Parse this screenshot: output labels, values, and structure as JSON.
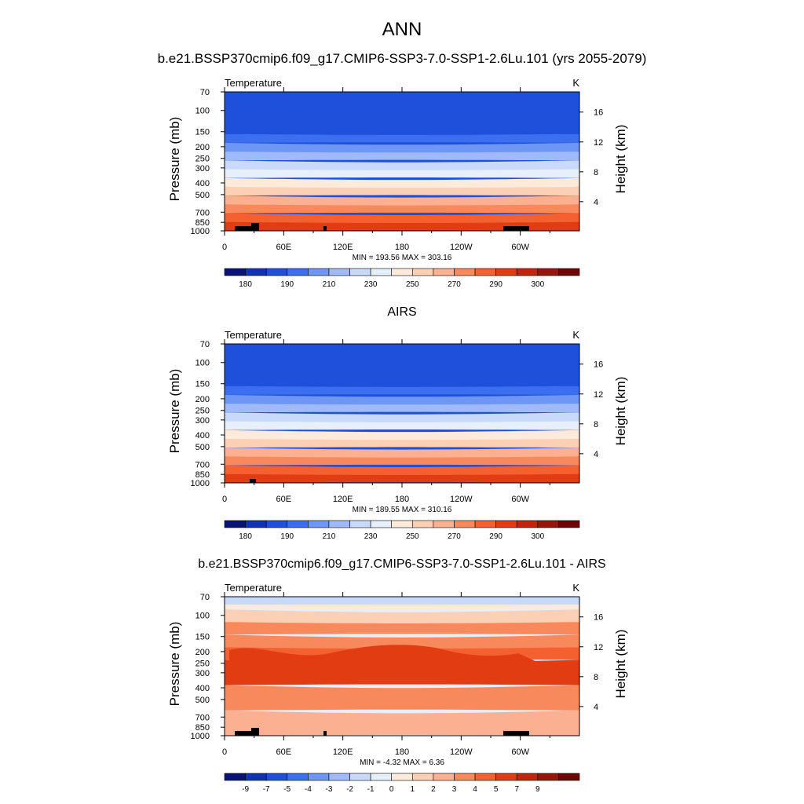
{
  "title": "ANN",
  "chart_data": [
    {
      "type": "contour",
      "panel_title": "b.e21.BSSP370cmip6.f09_g17.CMIP6-SSP3-7.0-SSP1-2.6Lu.101 (yrs 2055-2079)",
      "variable": "Temperature",
      "units": "K",
      "ylabel": "Pressure (mb)",
      "y2label": "Height (km)",
      "pressure_ticks": [
        "70",
        "100",
        "150",
        "200",
        "250",
        "300",
        "400",
        "500",
        "700",
        "850",
        "1000"
      ],
      "height_ticks": [
        "4",
        "8",
        "12",
        "16"
      ],
      "lon_ticks": [
        "0",
        "60E",
        "120E",
        "180",
        "120W",
        "60W"
      ],
      "stats": "MIN = 193.56  MAX = 303.16",
      "min": 193.56,
      "max": 303.16,
      "colorbar_labels": [
        "180",
        "190",
        "210",
        "230",
        "250",
        "270",
        "290",
        "300"
      ],
      "colors": [
        "#0a1478",
        "#1032b4",
        "#1e50dc",
        "#3c6ef0",
        "#6e96f5",
        "#a0b9f8",
        "#c8d9fa",
        "#e6effa",
        "#fdeadb",
        "#fcd0b4",
        "#fbb092",
        "#f8895d",
        "#f4602f",
        "#e23d12",
        "#c3250c",
        "#9a1509",
        "#6e0806"
      ],
      "band_levels_bottom_to_top": [
        13,
        12,
        11,
        10,
        9,
        8,
        7,
        6,
        5,
        4,
        3,
        2
      ]
    },
    {
      "type": "contour",
      "panel_title": "AIRS",
      "variable": "Temperature",
      "units": "K",
      "ylabel": "Pressure (mb)",
      "y2label": "Height (km)",
      "pressure_ticks": [
        "70",
        "100",
        "150",
        "200",
        "250",
        "300",
        "400",
        "500",
        "700",
        "850",
        "1000"
      ],
      "height_ticks": [
        "4",
        "8",
        "12",
        "16"
      ],
      "lon_ticks": [
        "0",
        "60E",
        "120E",
        "180",
        "120W",
        "60W"
      ],
      "stats": "MIN = 189.55  MAX = 310.16",
      "min": 189.55,
      "max": 310.16,
      "colorbar_labels": [
        "180",
        "190",
        "210",
        "230",
        "250",
        "270",
        "290",
        "300"
      ],
      "colors": [
        "#0a1478",
        "#1032b4",
        "#1e50dc",
        "#3c6ef0",
        "#6e96f5",
        "#a0b9f8",
        "#c8d9fa",
        "#e6effa",
        "#fdeadb",
        "#fcd0b4",
        "#fbb092",
        "#f8895d",
        "#f4602f",
        "#e23d12",
        "#c3250c",
        "#9a1509",
        "#6e0806"
      ],
      "band_levels_bottom_to_top": [
        13,
        12,
        11,
        10,
        9,
        8,
        7,
        6,
        5,
        4,
        3,
        2
      ]
    },
    {
      "type": "contour",
      "panel_title": "b.e21.BSSP370cmip6.f09_g17.CMIP6-SSP3-7.0-SSP1-2.6Lu.101 - AIRS",
      "variable": "Temperature",
      "units": "K",
      "ylabel": "Pressure (mb)",
      "y2label": "Height (km)",
      "pressure_ticks": [
        "70",
        "100",
        "150",
        "200",
        "250",
        "300",
        "400",
        "500",
        "700",
        "850",
        "1000"
      ],
      "height_ticks": [
        "4",
        "8",
        "12",
        "16"
      ],
      "lon_ticks": [
        "0",
        "60E",
        "120E",
        "180",
        "120W",
        "60W"
      ],
      "stats": "MIN =  -4.32  MAX =   6.36",
      "min": -4.32,
      "max": 6.36,
      "colorbar_labels": [
        "-9",
        "-7",
        "-5",
        "-4",
        "-3",
        "-2",
        "-1",
        "0",
        "1",
        "2",
        "3",
        "4",
        "5",
        "7",
        "9"
      ],
      "colors": [
        "#0a1478",
        "#1032b4",
        "#1e50dc",
        "#3c6ef0",
        "#6e96f5",
        "#a0b9f8",
        "#c8d9fa",
        "#e6effa",
        "#fdeadb",
        "#fcd0b4",
        "#fbb092",
        "#f8895d",
        "#f4602f",
        "#e23d12",
        "#c3250c",
        "#9a1509",
        "#6e0806"
      ],
      "band_levels_bottom_to_top": [
        10,
        10,
        11,
        11,
        13,
        13,
        12,
        11,
        11,
        9,
        8
      ]
    }
  ]
}
